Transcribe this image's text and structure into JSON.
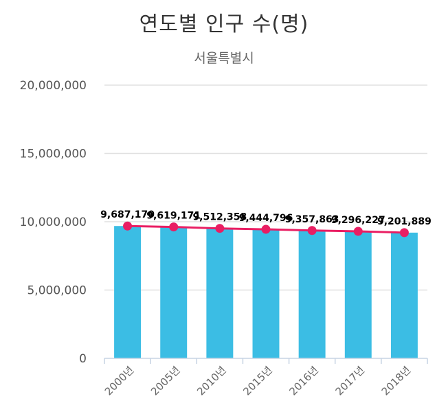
{
  "chart_data": {
    "type": "bar",
    "title": "연도별 인구 수(명)",
    "subtitle": "서울특별시",
    "categories": [
      "2000년",
      "2005년",
      "2010년",
      "2015년",
      "2016년",
      "2017년",
      "2018년"
    ],
    "series": [
      {
        "type": "bar",
        "values": [
          9687170,
          9619171,
          9512358,
          9444796,
          9357863,
          9296227,
          9201889
        ],
        "color": "#3bbde4"
      },
      {
        "type": "line",
        "values": [
          9687170,
          9619171,
          9512358,
          9444796,
          9357863,
          9296227,
          9201889
        ],
        "labels": [
          "9,687,170",
          "9,619,171",
          "9,512,358",
          "9,444,796",
          "9,357,863",
          "9,296,227",
          "9,201,889"
        ],
        "color": "#e91e63"
      }
    ],
    "ylim": [
      0,
      20000000
    ],
    "yticks": [
      "0",
      "5,000,000",
      "10,000,000",
      "15,000,000",
      "20,000,000"
    ],
    "ytick_values": [
      0,
      5000000,
      10000000,
      15000000,
      20000000
    ],
    "grid": true,
    "legend": "none"
  }
}
